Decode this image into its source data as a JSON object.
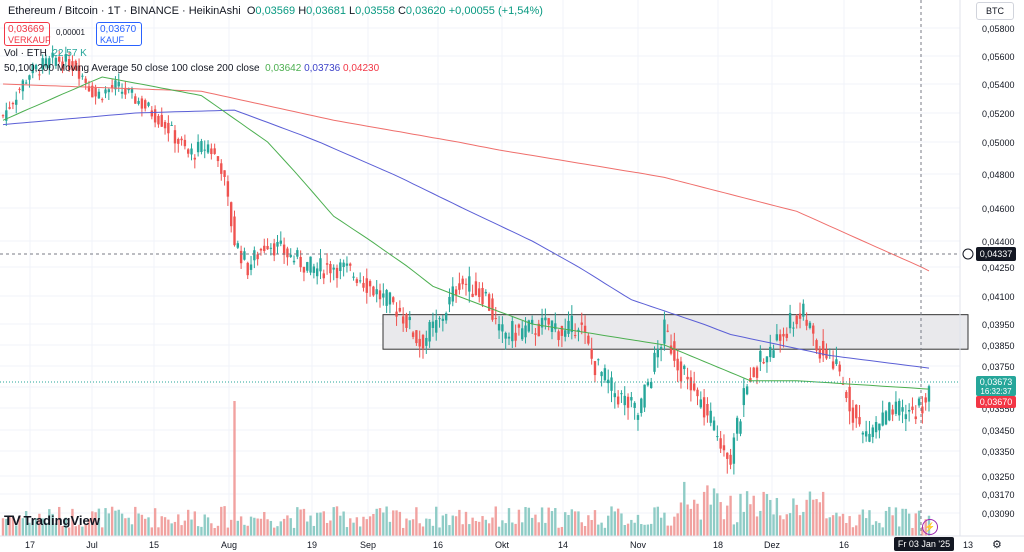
{
  "header": {
    "title": "Ethereum / Bitcoin · 1T · BINANCE · HeikinAshi",
    "ohlc": [
      {
        "k": "O",
        "v": "0,03569"
      },
      {
        "k": "H",
        "v": "0,03681"
      },
      {
        "k": "L",
        "v": "0,03558"
      },
      {
        "k": "C",
        "v": "0,03620"
      }
    ],
    "change": "+0,00055 (+1,54%)"
  },
  "trade": {
    "sell_price": "0,03669",
    "sell_label": "VERKAUF",
    "spread": "0,00001",
    "buy_price": "0,03670",
    "buy_label": "KAUF"
  },
  "legend": {
    "vol_label": "Vol · ETH",
    "vol_value": "22,57 K",
    "ma_label": "50,100,200 Moving Average 50 close 100 close 200 close",
    "ma_values": [
      "0,03642",
      "0,03736",
      "0,04230"
    ]
  },
  "colors": {
    "up": "#26a69a",
    "down": "#ef5350",
    "vol_up": "#8fccc6",
    "vol_down": "#f1a2a0",
    "ma50": "#4caf50",
    "ma100": "#5b5fd6",
    "ma200": "#ef6f6c",
    "box_fill": "#e9e9ec",
    "box_stroke": "#333333"
  },
  "brand": "TradingView",
  "unit": "BTC",
  "chart_data": {
    "type": "candlestick",
    "price_axis_ticks": [
      "0,05800",
      "0,05600",
      "0,05400",
      "0,05200",
      "0,05000",
      "0,04800",
      "0,04600",
      "0,04400",
      "0,04250",
      "0,04100",
      "0,03950",
      "0,03850",
      "0,03750",
      "0,03650",
      "0,03550",
      "0,03450",
      "0,03350",
      "0,03250",
      "0,03170",
      "0,03090"
    ],
    "time_axis_labels": [
      "17",
      "Jul",
      "15",
      "Aug",
      "19",
      "Sep",
      "16",
      "Okt",
      "14",
      "Nov",
      "18",
      "Dez",
      "16",
      "13"
    ],
    "date_badge": "Fr 03 Jan '25",
    "price_labels": {
      "crosshair": "0,04337",
      "last": "0,03673",
      "countdown": "16:32:37",
      "buy": "0,03670"
    },
    "zone": {
      "top": 0.04,
      "bottom": 0.0383
    },
    "anchors": [
      [
        0,
        0.0518
      ],
      [
        8,
        0.0548
      ],
      [
        16,
        0.0558
      ],
      [
        22,
        0.0553
      ],
      [
        28,
        0.0532
      ],
      [
        34,
        0.0538
      ],
      [
        40,
        0.053
      ],
      [
        48,
        0.0515
      ],
      [
        56,
        0.0492
      ],
      [
        62,
        0.0498
      ],
      [
        66,
        0.0485
      ],
      [
        70,
        0.044
      ],
      [
        74,
        0.0425
      ],
      [
        80,
        0.044
      ],
      [
        86,
        0.0432
      ],
      [
        94,
        0.0424
      ],
      [
        100,
        0.0426
      ],
      [
        108,
        0.042
      ],
      [
        114,
        0.041
      ],
      [
        120,
        0.0402
      ],
      [
        126,
        0.0386
      ],
      [
        132,
        0.0396
      ],
      [
        138,
        0.0418
      ],
      [
        146,
        0.041
      ],
      [
        150,
        0.039
      ],
      [
        158,
        0.0392
      ],
      [
        166,
        0.0395
      ],
      [
        170,
        0.039
      ],
      [
        174,
        0.0397
      ],
      [
        178,
        0.0378
      ],
      [
        184,
        0.0364
      ],
      [
        192,
        0.0352
      ],
      [
        200,
        0.0392
      ],
      [
        206,
        0.037
      ],
      [
        214,
        0.0348
      ],
      [
        220,
        0.0333
      ],
      [
        226,
        0.0372
      ],
      [
        232,
        0.0382
      ],
      [
        238,
        0.0396
      ],
      [
        242,
        0.04
      ],
      [
        246,
        0.0384
      ],
      [
        250,
        0.038
      ],
      [
        256,
        0.0358
      ],
      [
        260,
        0.0342
      ],
      [
        268,
        0.0352
      ],
      [
        276,
        0.0354
      ],
      [
        280,
        0.0362
      ]
    ],
    "ma_series": {
      "ma50": [
        [
          0,
          0.0515
        ],
        [
          30,
          0.0545
        ],
        [
          60,
          0.0532
        ],
        [
          80,
          0.05
        ],
        [
          100,
          0.0455
        ],
        [
          130,
          0.0415
        ],
        [
          160,
          0.0395
        ],
        [
          200,
          0.0385
        ],
        [
          226,
          0.0368
        ],
        [
          240,
          0.0368
        ],
        [
          260,
          0.0366
        ],
        [
          280,
          0.0364
        ]
      ],
      "ma100": [
        [
          0,
          0.0512
        ],
        [
          40,
          0.052
        ],
        [
          70,
          0.0522
        ],
        [
          90,
          0.0505
        ],
        [
          120,
          0.0478
        ],
        [
          160,
          0.044
        ],
        [
          190,
          0.0408
        ],
        [
          220,
          0.039
        ],
        [
          250,
          0.038
        ],
        [
          280,
          0.0374
        ]
      ],
      "ma200": [
        [
          0,
          0.054
        ],
        [
          60,
          0.0535
        ],
        [
          100,
          0.0515
        ],
        [
          150,
          0.0495
        ],
        [
          200,
          0.0478
        ],
        [
          240,
          0.0458
        ],
        [
          260,
          0.044
        ],
        [
          280,
          0.0423
        ]
      ]
    }
  }
}
